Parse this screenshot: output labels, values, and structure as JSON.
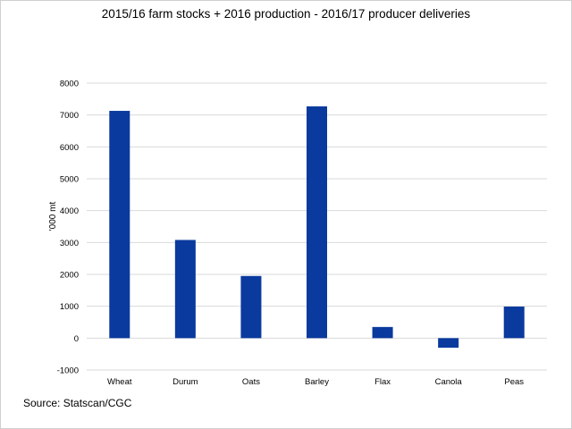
{
  "chart_data": {
    "type": "bar",
    "title": "2015/16 farm stocks + 2016 production - 2016/17 producer deliveries",
    "xlabel": "",
    "ylabel": "'000 mt",
    "categories": [
      "Wheat",
      "Durum",
      "Oats",
      "Barley",
      "Flax",
      "Canola",
      "Peas"
    ],
    "values": [
      7130,
      3080,
      1950,
      7270,
      350,
      -300,
      990
    ],
    "ylim": [
      -1000,
      8000
    ],
    "yticks": [
      -1000,
      0,
      1000,
      2000,
      3000,
      4000,
      5000,
      6000,
      7000,
      8000
    ],
    "grid": true,
    "legend": "none",
    "bar_color": "#0A3A9E",
    "grid_color": "#d9d9d9",
    "source": "Source: Statscan/CGC"
  }
}
